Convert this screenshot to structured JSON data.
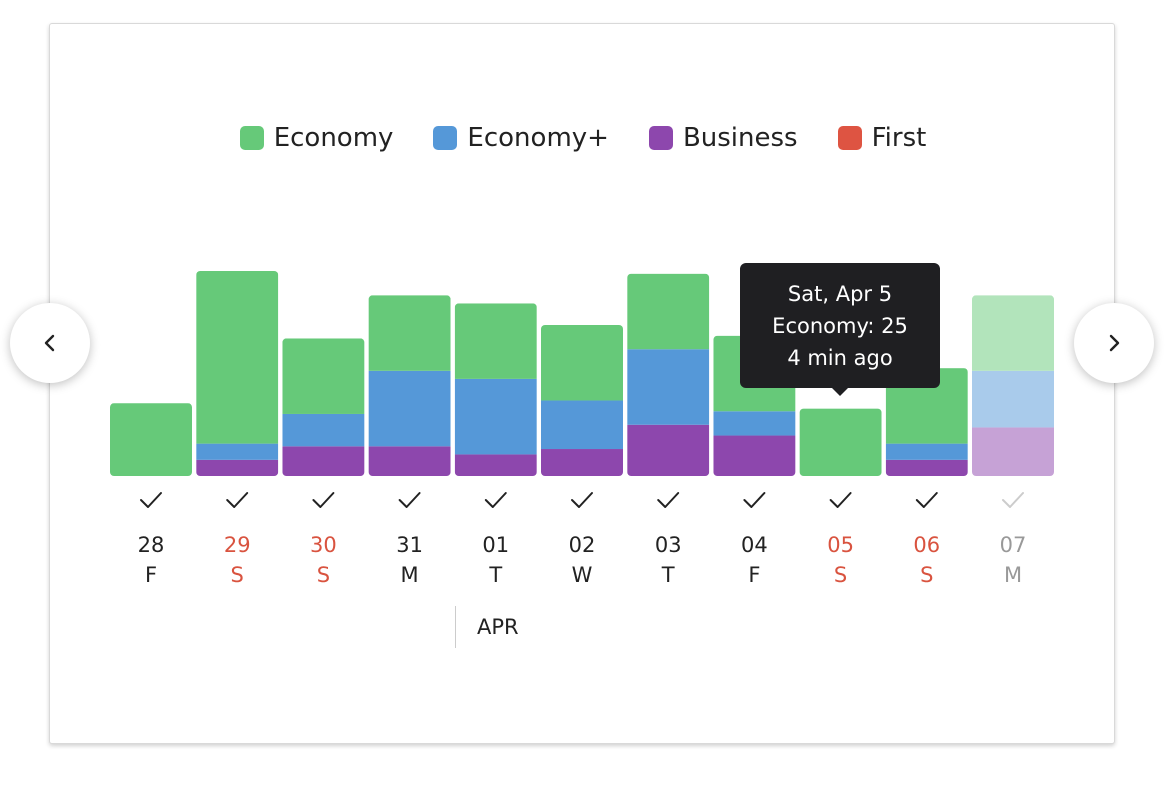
{
  "colors": {
    "economy": "#66c979",
    "economy_plus": "#5598d8",
    "business": "#8d47ad",
    "first": "#de5442",
    "weekend_text": "#d9533f",
    "weekday_text": "#222222",
    "future_text": "#999999"
  },
  "legend": [
    {
      "label": "Economy",
      "color": "#66c979"
    },
    {
      "label": "Economy+",
      "color": "#5598d8"
    },
    {
      "label": "Business",
      "color": "#8d47ad"
    },
    {
      "label": "First",
      "color": "#de5442"
    }
  ],
  "navigation": {
    "prev_icon": "chevron-left-icon",
    "next_icon": "chevron-right-icon"
  },
  "tooltip": {
    "line1": "Sat, Apr 5",
    "line2": "Economy: 25",
    "line3": "4 min ago"
  },
  "month_label": "APR",
  "chart_data": {
    "type": "bar",
    "stacked": true,
    "categories": [
      "28",
      "29",
      "30",
      "31",
      "01",
      "02",
      "03",
      "04",
      "05",
      "06",
      "07"
    ],
    "weekdays": [
      "F",
      "S",
      "S",
      "M",
      "T",
      "W",
      "T",
      "F",
      "S",
      "S",
      "M"
    ],
    "weekend": [
      false,
      true,
      true,
      false,
      false,
      false,
      false,
      false,
      true,
      true,
      false
    ],
    "checked": [
      true,
      true,
      true,
      true,
      true,
      true,
      true,
      true,
      true,
      true,
      true
    ],
    "future": [
      false,
      false,
      false,
      false,
      false,
      false,
      false,
      false,
      false,
      false,
      true
    ],
    "series": [
      {
        "name": "Business",
        "values": [
          0,
          6,
          11,
          11,
          8,
          10,
          19,
          15,
          0,
          6,
          18
        ]
      },
      {
        "name": "Economy+",
        "values": [
          0,
          6,
          12,
          28,
          28,
          18,
          28,
          9,
          0,
          6,
          21
        ]
      },
      {
        "name": "Economy",
        "values": [
          27,
          64,
          28,
          28,
          28,
          28,
          28,
          28,
          25,
          28,
          28
        ]
      },
      {
        "name": "First",
        "values": [
          0,
          0,
          0,
          0,
          0,
          0,
          0,
          0,
          0,
          0,
          0
        ]
      }
    ],
    "ylim": [
      0,
      76
    ],
    "xlabel": "",
    "ylabel": "",
    "grid": false,
    "legend_position": "top-center"
  }
}
